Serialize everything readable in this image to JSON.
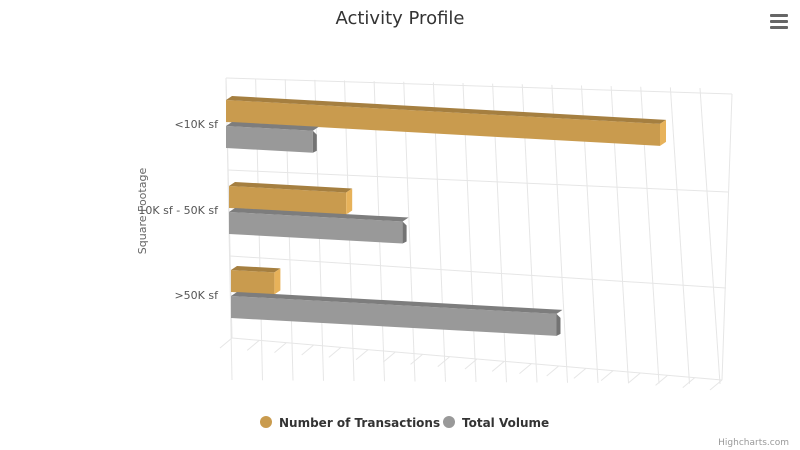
{
  "chart_data": {
    "type": "bar",
    "title": "Activity Profile",
    "ylabel": "Square Footage",
    "categories": [
      "<10K sf",
      "10K sf - 50K sf",
      ">50K sf"
    ],
    "series": [
      {
        "name": "Number of Transactions",
        "values": [
          100,
          27,
          10
        ],
        "color": "#C99B4E"
      },
      {
        "name": "Total Volume",
        "values": [
          20,
          40,
          75
        ],
        "color": "#999999"
      }
    ],
    "xlim": [
      0,
      160
    ],
    "grid": true,
    "legend_position": "bottom-center",
    "credits": "Highcharts.com"
  },
  "menu_icon": "hamburger-menu-icon"
}
